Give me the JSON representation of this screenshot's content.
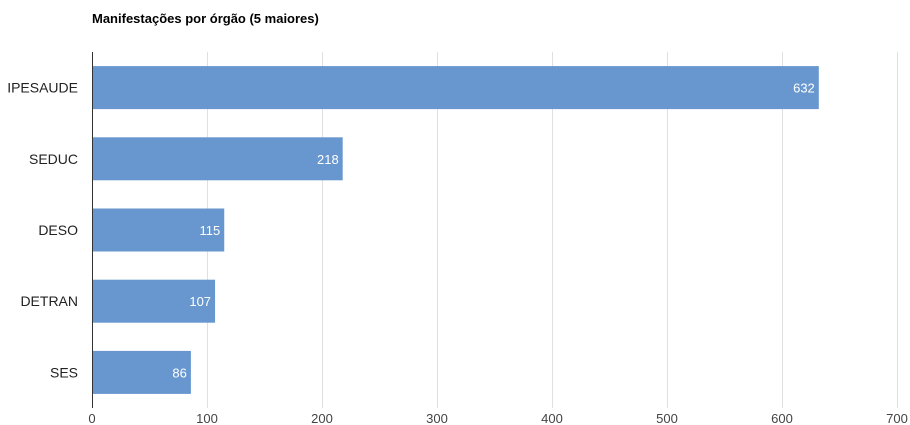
{
  "chart_data": {
    "type": "bar",
    "orientation": "horizontal",
    "title": "Manifestações por órgão (5 maiores)",
    "categories": [
      "IPESAUDE",
      "SEDUC",
      "DESO",
      "DETRAN",
      "SES"
    ],
    "values": [
      632,
      218,
      115,
      107,
      86
    ],
    "value_labels": [
      "632",
      "218",
      "115",
      "107",
      "86"
    ],
    "xlim": [
      0,
      700
    ],
    "x_ticks": [
      0,
      100,
      200,
      300,
      400,
      500,
      600,
      700
    ],
    "x_tick_labels": [
      "0",
      "100",
      "200",
      "300",
      "400",
      "500",
      "600",
      "700"
    ],
    "grid": "vertical",
    "legend": "none",
    "bar_color": "#6897cf",
    "grid_color": "#e0e0e0",
    "axis_color": "#333333",
    "value_label_color": "#ffffff"
  }
}
